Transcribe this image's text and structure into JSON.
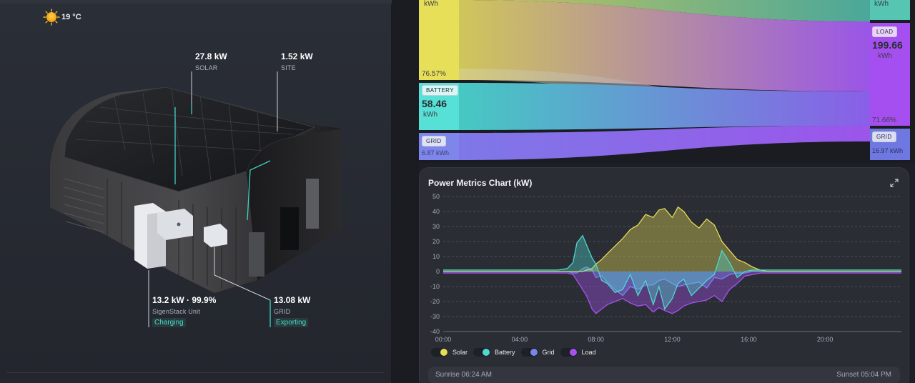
{
  "weather": {
    "icon": "sun-icon",
    "temperature": "19 °C"
  },
  "site_view": {
    "solar": {
      "value": "27.8 kW",
      "label": "SOLAR"
    },
    "site": {
      "value": "1.52 kW",
      "label": "SITE"
    },
    "sigenstack": {
      "value": "13.2 kW · 99.9%",
      "label": "SigenStack Unit",
      "status": "Charging"
    },
    "grid": {
      "value": "13.08 kW",
      "label": "GRID",
      "status": "Exporting"
    }
  },
  "energy_flow": {
    "solar_unit": "kWh",
    "solar_percent": "76.57%",
    "battery": {
      "tag": "BATTERY",
      "value": "58.46",
      "unit": "kWh"
    },
    "grid_in": {
      "tag": "GRID",
      "value": "6.87 kWh"
    },
    "top_right_unit": "kWh",
    "load": {
      "tag": "LOAD",
      "value": "199.66",
      "unit": "kWh",
      "percent": "71.66%"
    },
    "grid_out": {
      "tag": "GRID",
      "value": "16.97 kWh"
    },
    "colors": {
      "solar": "#e9de58",
      "battery": "#4fe0d2",
      "grid": "#7b82e8",
      "load": "#a64ff0"
    }
  },
  "chart_panel": {
    "title": "Power Metrics Chart (kW)",
    "expand_icon": "expand-icon",
    "legend": [
      {
        "name": "Solar",
        "color": "#e8dc55"
      },
      {
        "name": "Battery",
        "color": "#4fd8cf"
      },
      {
        "name": "Grid",
        "color": "#7a84ee"
      },
      {
        "name": "Load",
        "color": "#a652ef"
      }
    ],
    "sunrise": "Sunrise 06:24 AM",
    "sunset": "Sunset 05:04 PM"
  },
  "chart_data": {
    "type": "area",
    "xlabel": "",
    "ylabel": "",
    "xlim": [
      0,
      24
    ],
    "ylim": [
      -40,
      50
    ],
    "yticks": [
      50,
      40,
      30,
      20,
      10,
      0,
      -10,
      -20,
      -30,
      -40
    ],
    "xticks": [
      "00:00",
      "04:00",
      "08:00",
      "12:00",
      "16:00",
      "20:00"
    ],
    "grid": true,
    "x": [
      0,
      1,
      2,
      3,
      4,
      5,
      6,
      6.5,
      6.8,
      7,
      7.3,
      7.5,
      7.8,
      8,
      8.3,
      8.6,
      9,
      9.4,
      9.8,
      10.2,
      10.6,
      11,
      11.3,
      11.6,
      12,
      12.3,
      12.6,
      13,
      13.4,
      13.8,
      14.2,
      14.6,
      15,
      15.4,
      15.8,
      16.2,
      16.6,
      17,
      18,
      19,
      20,
      21,
      22,
      23,
      24
    ],
    "series": [
      {
        "name": "Solar",
        "color": "#e8dc55",
        "values": [
          0,
          0,
          0,
          0,
          0,
          0,
          0,
          0,
          0,
          0,
          0,
          1,
          2,
          5,
          8,
          12,
          17,
          22,
          28,
          31,
          38,
          36,
          41,
          42,
          36,
          43,
          40,
          33,
          29,
          35,
          31,
          20,
          14,
          8,
          6,
          3,
          1,
          0,
          0,
          0,
          0,
          0,
          0,
          0,
          0
        ]
      },
      {
        "name": "Battery",
        "color": "#4fd8cf",
        "values": [
          1,
          1,
          1,
          1,
          1,
          1,
          1,
          2,
          6,
          19,
          24,
          18,
          9,
          5,
          -6,
          -8,
          -14,
          -12,
          -2,
          -16,
          -6,
          -22,
          -10,
          -25,
          -18,
          -8,
          -5,
          -16,
          -11,
          -6,
          -2,
          14,
          6,
          -4,
          0,
          1,
          1,
          1,
          1,
          1,
          1,
          1,
          1,
          1,
          1
        ]
      },
      {
        "name": "Grid",
        "color": "#7a84ee",
        "values": [
          0,
          0,
          0,
          0,
          0,
          0,
          0,
          0,
          -1,
          -1,
          2,
          3,
          1,
          -4,
          -3,
          -7,
          -12,
          -16,
          -10,
          -12,
          -9,
          -9,
          -6,
          -5,
          -8,
          -10,
          -9,
          -8,
          -7,
          -11,
          -4,
          -5,
          -2,
          -1,
          -1,
          0,
          0,
          0,
          0,
          0,
          0,
          0,
          0,
          0,
          0
        ]
      },
      {
        "name": "Load",
        "color": "#a652ef",
        "values": [
          -1,
          -1,
          -1,
          -1,
          -1,
          -1,
          -1,
          -1,
          -2,
          -6,
          -12,
          -16,
          -25,
          -28,
          -25,
          -22,
          -20,
          -18,
          -21,
          -23,
          -22,
          -27,
          -24,
          -26,
          -28,
          -26,
          -23,
          -21,
          -20,
          -19,
          -16,
          -20,
          -12,
          -8,
          -3,
          -2,
          -1,
          -1,
          -1,
          -1,
          -1,
          -1,
          -1,
          -1,
          -1
        ]
      }
    ]
  }
}
